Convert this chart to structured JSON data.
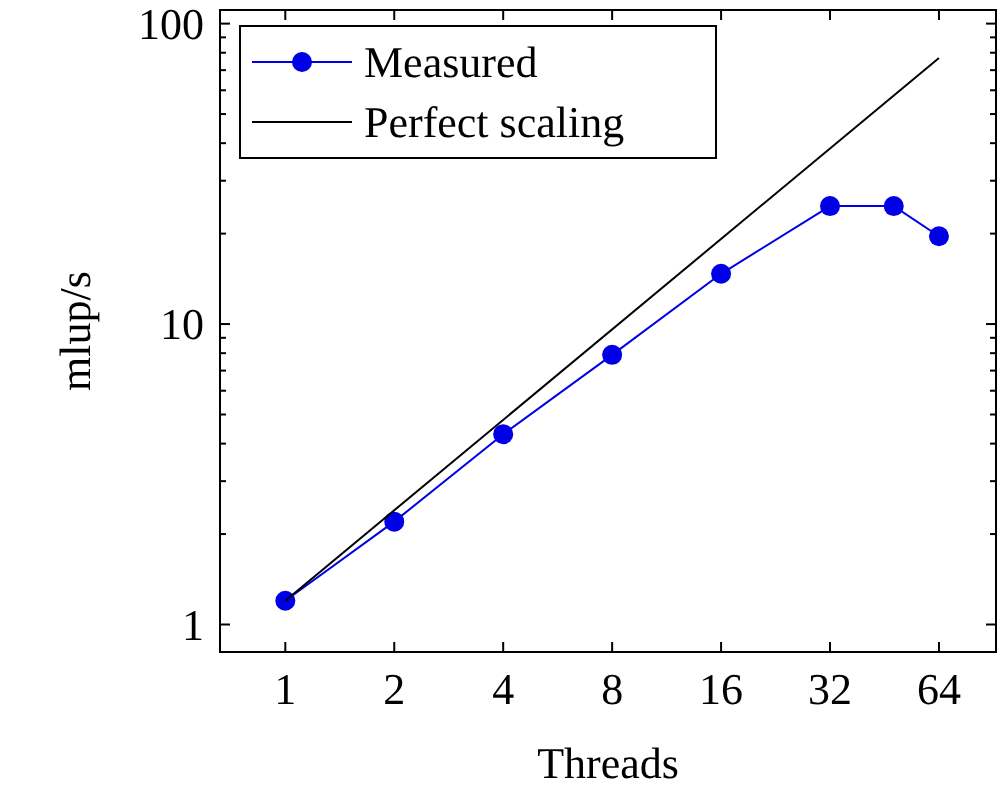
{
  "chart_data": {
    "type": "line",
    "xlabel": "Threads",
    "ylabel": "mlup/s",
    "log": "xy",
    "xlim": [
      0.66,
      92
    ],
    "ylim": [
      0.81,
      111
    ],
    "xticks": [
      1,
      2,
      4,
      8,
      16,
      32,
      64
    ],
    "yticks": [
      1,
      {
        "value": 2,
        "label": null
      },
      {
        "value": 3,
        "label": null
      },
      {
        "value": 4,
        "label": null
      },
      {
        "value": 5,
        "label": null
      },
      {
        "value": 6,
        "label": null
      },
      {
        "value": 7,
        "label": null
      },
      {
        "value": 8,
        "label": null
      },
      {
        "value": 9,
        "label": null
      },
      10,
      {
        "value": 20,
        "label": null
      },
      {
        "value": 30,
        "label": null
      },
      {
        "value": 40,
        "label": null
      },
      {
        "value": 50,
        "label": null
      },
      {
        "value": 60,
        "label": null
      },
      {
        "value": 70,
        "label": null
      },
      {
        "value": 80,
        "label": null
      },
      {
        "value": 90,
        "label": null
      },
      100
    ],
    "legend": "top left",
    "grid": false,
    "series": [
      {
        "name": "Measured",
        "color": "#0000e6",
        "marker": "circle",
        "x": [
          1,
          2,
          4,
          8,
          16,
          32,
          48,
          64
        ],
        "values": [
          1.2,
          2.2,
          4.3,
          7.9,
          14.7,
          24.7,
          24.7,
          19.6
        ]
      },
      {
        "name": "Perfect scaling",
        "color": "#000000",
        "marker": "none",
        "x": [
          1,
          64
        ],
        "values": [
          1.2,
          76.8
        ]
      }
    ]
  }
}
